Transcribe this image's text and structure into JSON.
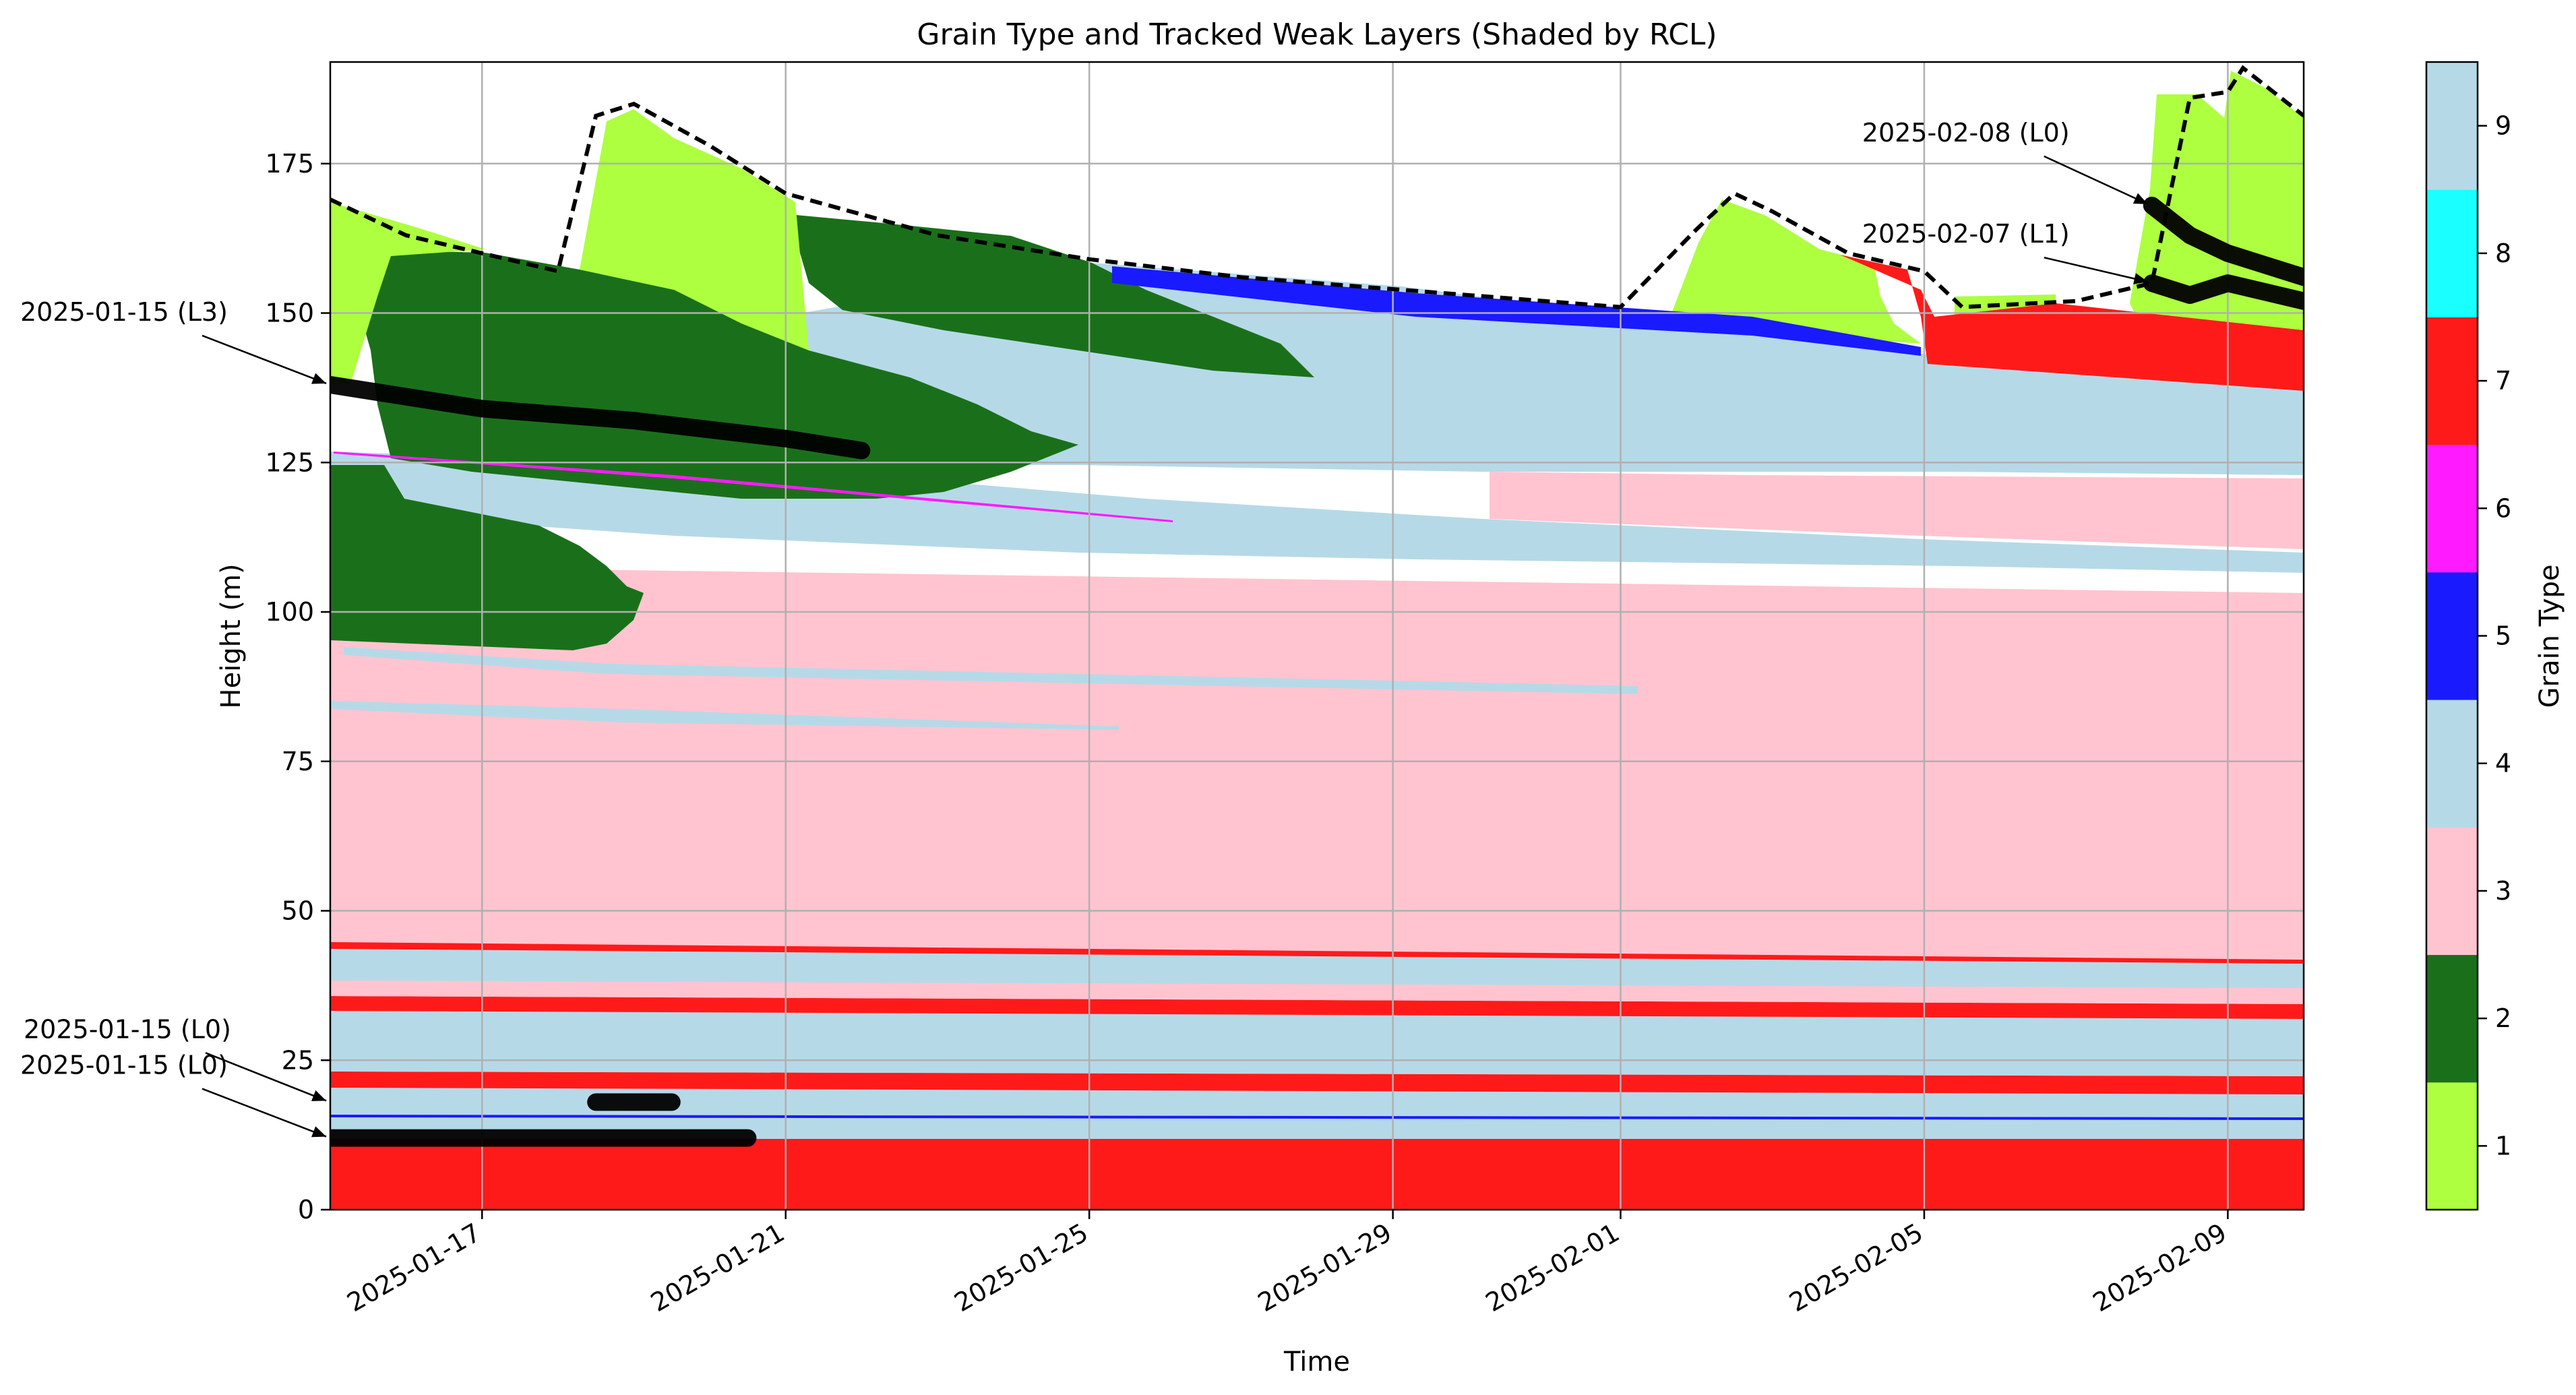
{
  "chart_data": {
    "type": "heatmap",
    "title": "Grain Type and Tracked Weak Layers (Shaded by RCL)",
    "xlabel": "Time",
    "ylabel": "Height (m)",
    "x_axis": {
      "range": [
        "2025-01-15",
        "2025-02-10"
      ],
      "ticks": [
        "2025-01-17",
        "2025-01-21",
        "2025-01-25",
        "2025-01-29",
        "2025-02-01",
        "2025-02-05",
        "2025-02-09"
      ]
    },
    "y_axis": {
      "range": [
        0,
        192
      ],
      "ticks": [
        0,
        25,
        50,
        75,
        100,
        125,
        150,
        175
      ]
    },
    "grid": true,
    "colorbar": {
      "label": "Grain Type",
      "ticks": [
        1,
        2,
        3,
        4,
        5,
        6,
        7,
        8,
        9
      ],
      "colors": [
        "#adff40",
        "#1a701a",
        "#ffc4d0",
        "#b6d9e8",
        "#1a1aff",
        "#ff1aff",
        "#ff1a1a",
        "#1affff",
        "#b6d9e8"
      ]
    },
    "snow_surface": [
      [
        "2025-01-15",
        169
      ],
      [
        "2025-01-16",
        163
      ],
      [
        "2025-01-17",
        160
      ],
      [
        "2025-01-18",
        157
      ],
      [
        "2025-01-18.5",
        183
      ],
      [
        "2025-01-19",
        185
      ],
      [
        "2025-01-20",
        178
      ],
      [
        "2025-01-21",
        170
      ],
      [
        "2025-01-23",
        163
      ],
      [
        "2025-01-25",
        159
      ],
      [
        "2025-01-27",
        156
      ],
      [
        "2025-01-29",
        154
      ],
      [
        "2025-01-31",
        152
      ],
      [
        "2025-02-01",
        151
      ],
      [
        "2025-02-02",
        164
      ],
      [
        "2025-02-02.5",
        170
      ],
      [
        "2025-02-03",
        167
      ],
      [
        "2025-02-04",
        160
      ],
      [
        "2025-02-05",
        157
      ],
      [
        "2025-02-05.5",
        151
      ],
      [
        "2025-02-07",
        152
      ],
      [
        "2025-02-08",
        155
      ],
      [
        "2025-02-08.5",
        186
      ],
      [
        "2025-02-09",
        187
      ],
      [
        "2025-02-09.2",
        191
      ],
      [
        "2025-02-10",
        183
      ]
    ],
    "weak_layers": [
      {
        "label": "2025-01-15 (L3)",
        "points": [
          [
            "2025-01-15",
            138
          ],
          [
            "2025-01-17",
            134
          ],
          [
            "2025-01-19",
            132
          ],
          [
            "2025-01-21",
            129
          ],
          [
            "2025-01-22",
            127
          ]
        ]
      },
      {
        "label": "2025-01-15 (L0)",
        "points": [
          [
            "2025-01-18.5",
            18
          ],
          [
            "2025-01-19.5",
            18
          ]
        ]
      },
      {
        "label": "2025-01-15 (L0)",
        "points": [
          [
            "2025-01-15",
            12
          ],
          [
            "2025-01-16",
            12
          ],
          [
            "2025-01-18.5",
            12
          ],
          [
            "2025-01-20.5",
            12
          ]
        ]
      },
      {
        "label": "2025-02-07 (L1)",
        "points": [
          [
            "2025-02-08",
            155
          ],
          [
            "2025-02-08.5",
            153
          ],
          [
            "2025-02-09",
            155
          ],
          [
            "2025-02-10",
            152
          ]
        ]
      },
      {
        "label": "2025-02-08 (L0)",
        "points": [
          [
            "2025-02-08",
            168
          ],
          [
            "2025-02-08.5",
            163
          ],
          [
            "2025-02-09",
            160
          ],
          [
            "2025-02-10",
            156
          ]
        ]
      }
    ]
  }
}
